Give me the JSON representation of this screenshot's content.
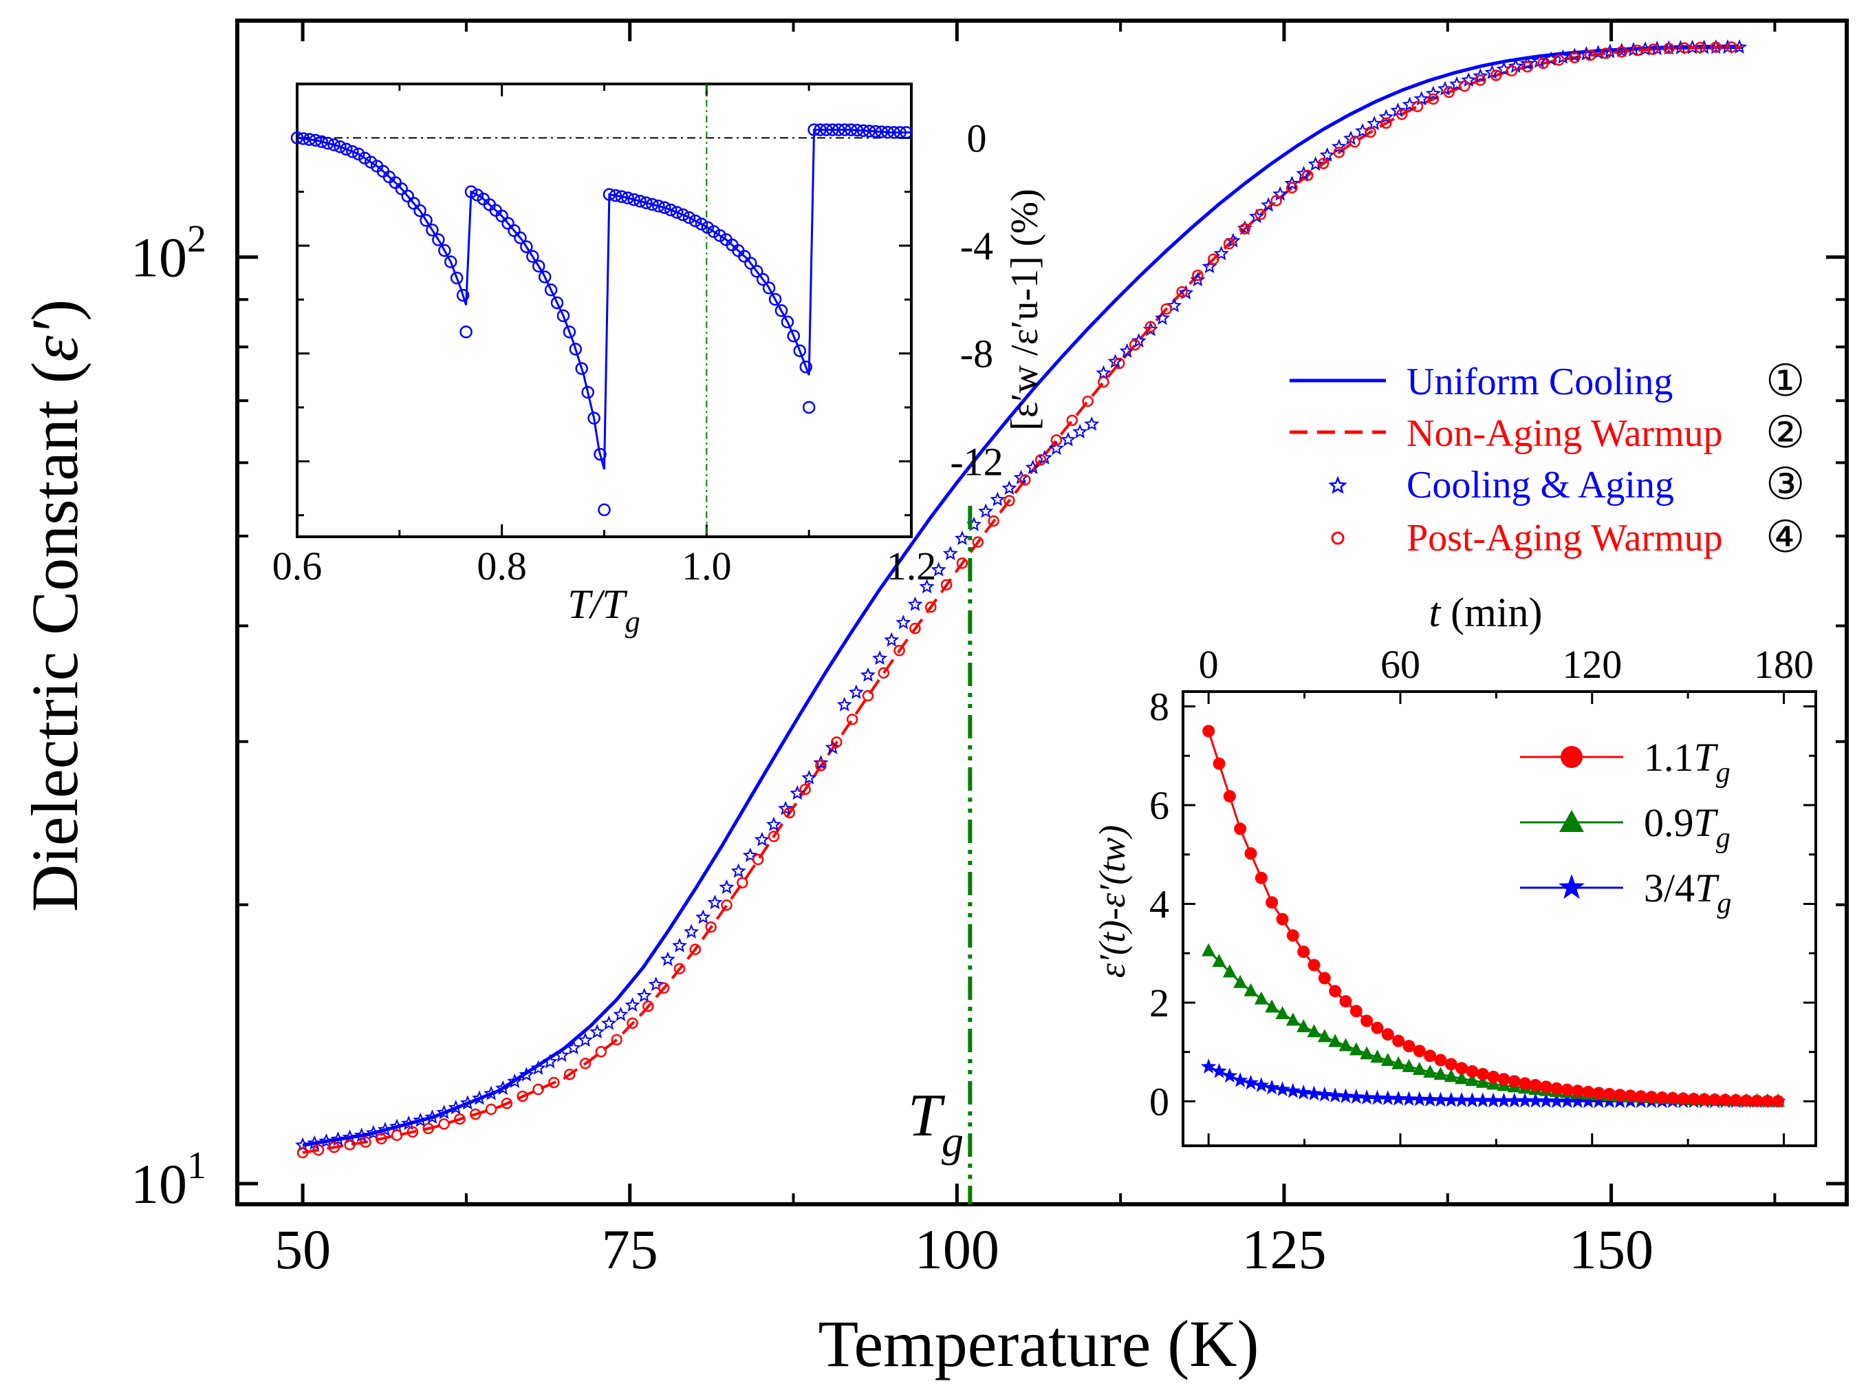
{
  "colors": {
    "blue": "#0000ff",
    "red": "#ff0000",
    "green": "#007f00",
    "black": "#000000"
  },
  "chart_data": [
    {
      "id": "main",
      "type": "line",
      "xlabel": "Temperature (K)",
      "ylabel_prefix": "Dielectric Constant (",
      "ylabel_symbol": "ε′",
      "ylabel_suffix": ")",
      "xlim": [
        45,
        168
      ],
      "ylim": [
        9.5,
        180
      ],
      "yscale": "log",
      "xticks": [
        50,
        75,
        100,
        125,
        150
      ],
      "xtick_labels": [
        "50",
        "75",
        "100",
        "125",
        "150"
      ],
      "yticks_major": [
        10,
        100
      ],
      "ytick_labels": [
        {
          "base": "10",
          "exp": "1"
        },
        {
          "base": "10",
          "exp": "2"
        }
      ],
      "yticks_minor": [
        20,
        30,
        40,
        50,
        60,
        70,
        80,
        90
      ],
      "tg_line_x": 101,
      "tg_label": {
        "main": "T",
        "sub": "g"
      },
      "legend_position": "right",
      "legend": [
        {
          "label": "Uniform Cooling",
          "number": "①",
          "style": "solid",
          "color": "blue"
        },
        {
          "label": "Non-Aging Warmup",
          "number": "②",
          "style": "dashed",
          "color": "red"
        },
        {
          "label": "Cooling & Aging",
          "number": "③",
          "style": "star",
          "color": "blue"
        },
        {
          "label": "Post-Aging Warmup",
          "number": "④",
          "style": "circle",
          "color": "red"
        }
      ],
      "series": [
        {
          "name": "Uniform Cooling",
          "x": [
            50,
            55,
            60,
            65,
            70,
            72,
            74,
            76,
            78,
            80,
            82,
            84,
            86,
            88,
            90,
            92,
            94,
            96,
            98,
            100,
            102,
            104,
            106,
            108,
            110,
            112,
            114,
            116,
            118,
            120,
            122,
            124,
            126,
            128,
            130,
            132,
            134,
            136,
            138,
            140,
            142,
            144,
            146,
            148,
            150,
            152,
            154,
            156,
            158,
            160
          ],
          "y": [
            11.0,
            11.3,
            11.8,
            12.6,
            14.0,
            14.8,
            15.8,
            17.1,
            18.8,
            20.8,
            23.1,
            25.8,
            28.8,
            32.1,
            35.7,
            39.5,
            43.6,
            47.8,
            52.4,
            57.1,
            62.0,
            67.1,
            72.5,
            78.0,
            83.7,
            89.5,
            95.5,
            101.6,
            107.8,
            114.0,
            120.1,
            126.1,
            131.9,
            137.4,
            142.5,
            147.2,
            151.4,
            155.0,
            158.1,
            160.7,
            162.8,
            164.4,
            165.7,
            166.6,
            167.3,
            167.8,
            168.1,
            168.3,
            168.4,
            168.5
          ]
        },
        {
          "name": "Non-Aging Warmup",
          "x": [
            50,
            55,
            60,
            65,
            70,
            72,
            74,
            76,
            78,
            80,
            82,
            84,
            86,
            88,
            90,
            92,
            94,
            96,
            98,
            100,
            102,
            104,
            106,
            108,
            110,
            112,
            114,
            116,
            118,
            120,
            122,
            124,
            126,
            128,
            130,
            132,
            134,
            136,
            138,
            140,
            142,
            144,
            146,
            148,
            150,
            152,
            154,
            156,
            158,
            160
          ],
          "y": [
            10.8,
            11.1,
            11.5,
            12.1,
            13.0,
            13.6,
            14.3,
            15.3,
            16.5,
            17.9,
            19.6,
            21.5,
            23.7,
            26.1,
            28.8,
            31.7,
            34.9,
            38.3,
            41.9,
            45.9,
            50.1,
            54.6,
            59.4,
            64.5,
            69.9,
            75.6,
            81.6,
            87.9,
            94.3,
            100.8,
            107.3,
            113.8,
            120.1,
            126.2,
            132.1,
            137.5,
            142.6,
            147.3,
            151.5,
            155.2,
            158.4,
            161.0,
            163.2,
            164.9,
            166.2,
            167.2,
            167.9,
            168.3,
            168.5,
            168.6
          ]
        },
        {
          "name": "Cooling & Aging",
          "x": [
            50,
            55,
            60,
            65,
            70,
            72,
            74,
            76,
            77,
            77.1,
            78,
            80,
            82,
            84,
            86,
            88,
            90,
            91,
            91.1,
            92,
            94,
            96,
            98,
            100,
            102,
            104,
            106,
            108,
            110,
            111,
            111.1,
            112,
            114,
            116,
            118,
            120,
            122,
            124,
            126,
            128,
            130,
            132,
            134,
            136,
            138,
            140,
            142,
            144,
            146,
            148,
            150,
            152,
            154,
            156,
            158,
            160
          ],
          "y": [
            11.0,
            11.3,
            11.8,
            12.6,
            13.8,
            14.4,
            15.1,
            15.9,
            16.4,
            17.1,
            17.5,
            18.9,
            20.5,
            22.4,
            24.4,
            26.6,
            28.9,
            30.2,
            32.6,
            33.4,
            36.7,
            40.5,
            44.7,
            48.9,
            52.8,
            56.3,
            59.6,
            62.8,
            65.6,
            67.0,
            74.7,
            76.9,
            81.4,
            86.7,
            93.1,
            100.1,
            107.4,
            114.5,
            121.4,
            127.9,
            134.0,
            139.6,
            144.7,
            149.3,
            153.3,
            156.8,
            159.8,
            162.2,
            164.1,
            165.6,
            166.7,
            167.5,
            168.0,
            168.3,
            168.4,
            168.5
          ]
        },
        {
          "name": "Post-Aging Warmup",
          "x": [
            50,
            55,
            60,
            65,
            70,
            72,
            74,
            76,
            78,
            80,
            82,
            84,
            86,
            88,
            90,
            92,
            94,
            96,
            98,
            100,
            102,
            104,
            106,
            108,
            110,
            112,
            114,
            116,
            118,
            120,
            122,
            124,
            126,
            128,
            130,
            132,
            134,
            136,
            138,
            140,
            142,
            144,
            146,
            148,
            150,
            152,
            154,
            156,
            158,
            160
          ],
          "y": [
            10.8,
            11.1,
            11.5,
            12.1,
            13.0,
            13.6,
            14.3,
            15.3,
            16.5,
            17.9,
            19.6,
            21.5,
            23.7,
            26.1,
            28.8,
            31.7,
            34.9,
            38.3,
            41.9,
            45.9,
            50.1,
            54.6,
            59.4,
            64.5,
            69.9,
            75.6,
            81.6,
            87.9,
            94.3,
            100.8,
            107.3,
            113.8,
            120.1,
            126.2,
            132.1,
            137.5,
            142.6,
            147.3,
            151.5,
            155.2,
            158.4,
            161.0,
            163.2,
            164.9,
            166.2,
            167.2,
            167.9,
            168.3,
            168.5,
            168.6
          ]
        }
      ]
    },
    {
      "id": "inset-ratio",
      "type": "scatter",
      "xlabel": {
        "main": "T/T",
        "sub": "g"
      },
      "ylabel": "[ε′w /ε′u-1] (%)",
      "xlim": [
        0.6,
        1.2
      ],
      "ylim": [
        -14.8,
        2.0
      ],
      "xticks": [
        0.6,
        0.8,
        1.0,
        1.2
      ],
      "xtick_labels": [
        "0.6",
        "0.8",
        "1.0",
        "1.2"
      ],
      "yticks": [
        0,
        -4,
        -8,
        -12
      ],
      "ytick_labels": [
        "0",
        "-4",
        "-8",
        "-12"
      ],
      "zero_line": 0,
      "vline_x": 1.0,
      "series": [
        {
          "name": "",
          "segments": [
            {
              "x": [
                0.6,
                0.62,
                0.64,
                0.66,
                0.68,
                0.7,
                0.72,
                0.74,
                0.75,
                0.76,
                0.765
              ],
              "y": [
                0.0,
                -0.1,
                -0.3,
                -0.6,
                -1.1,
                -1.8,
                -2.7,
                -3.9,
                -4.6,
                -5.6,
                -6.2
              ]
            },
            {
              "x": [
                0.77,
                0.78,
                0.8,
                0.82,
                0.84,
                0.86,
                0.87,
                0.88,
                0.89,
                0.895,
                0.9
              ],
              "y": [
                -2.0,
                -2.2,
                -2.9,
                -3.8,
                -5.0,
                -6.6,
                -7.6,
                -8.8,
                -10.4,
                -11.6,
                -12.3
              ]
            },
            {
              "x": [
                0.905,
                0.92,
                0.94,
                0.96,
                0.98,
                1.0,
                1.02,
                1.04,
                1.06,
                1.08,
                1.09,
                1.1
              ],
              "y": [
                -2.1,
                -2.2,
                -2.4,
                -2.6,
                -2.9,
                -3.3,
                -3.8,
                -4.5,
                -5.5,
                -6.9,
                -7.8,
                -8.8
              ]
            },
            {
              "x": [
                1.105,
                1.12,
                1.14,
                1.16,
                1.18,
                1.2
              ],
              "y": [
                0.3,
                0.3,
                0.3,
                0.25,
                0.2,
                0.2
              ]
            }
          ],
          "outliers": {
            "x": [
              0.765,
              0.9,
              1.1
            ],
            "y": [
              -7.2,
              -13.8,
              -10.0
            ]
          }
        }
      ]
    },
    {
      "id": "inset-relaxation",
      "type": "line",
      "xlabel": {
        "main": "t",
        "suffix": " (min)"
      },
      "ylabel": "ε′(t)-ε′(tw)",
      "xlim": [
        -8,
        190
      ],
      "ylim": [
        -0.9,
        8.3
      ],
      "xticks": [
        0,
        60,
        120,
        180
      ],
      "xtick_labels": [
        "0",
        "60",
        "120",
        "180"
      ],
      "yticks": [
        0,
        2,
        4,
        6,
        8
      ],
      "ytick_labels": [
        "0",
        "2",
        "4",
        "6",
        "8"
      ],
      "legend_position": "top-right",
      "legend": [
        {
          "main": "1.1",
          "sym": "T",
          "sub": "g",
          "marker": "circle",
          "color": "red"
        },
        {
          "main": "0.9",
          "sym": "T",
          "sub": "g",
          "marker": "triangle",
          "color": "green"
        },
        {
          "main": "3/4",
          "sym": "T",
          "sub": "g",
          "marker": "star",
          "color": "blue"
        }
      ],
      "series": [
        {
          "name": "1.1Tg",
          "x": [
            0,
            10,
            20,
            30,
            40,
            50,
            60,
            70,
            80,
            90,
            100,
            110,
            120,
            130,
            140,
            150,
            160,
            170,
            180
          ],
          "y": [
            7.5,
            5.5,
            4.0,
            3.0,
            2.2,
            1.6,
            1.2,
            0.9,
            0.65,
            0.48,
            0.35,
            0.25,
            0.18,
            0.12,
            0.08,
            0.05,
            0.03,
            0.01,
            0.0
          ]
        },
        {
          "name": "0.9Tg",
          "x": [
            0,
            10,
            20,
            30,
            40,
            50,
            60,
            70,
            80,
            90,
            100,
            110,
            120,
            130,
            140,
            150,
            160,
            170,
            180
          ],
          "y": [
            3.05,
            2.4,
            1.9,
            1.5,
            1.2,
            0.95,
            0.75,
            0.58,
            0.45,
            0.34,
            0.26,
            0.19,
            0.14,
            0.1,
            0.07,
            0.04,
            0.02,
            0.01,
            0.0
          ]
        },
        {
          "name": "3/4Tg",
          "x": [
            0,
            10,
            20,
            30,
            40,
            50,
            60,
            70,
            80,
            90,
            100,
            110,
            120,
            130,
            140,
            150,
            160,
            170,
            180
          ],
          "y": [
            0.7,
            0.42,
            0.27,
            0.17,
            0.11,
            0.07,
            0.05,
            0.03,
            0.02,
            0.01,
            0.01,
            0.0,
            0.0,
            0.0,
            0.0,
            0.0,
            0.0,
            0.0,
            0.0
          ]
        }
      ]
    }
  ]
}
